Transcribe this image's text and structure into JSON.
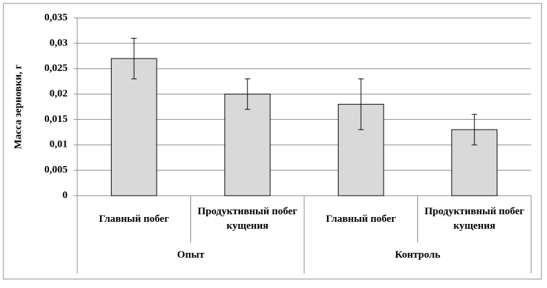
{
  "chart_data": {
    "type": "bar",
    "y_label": "Масса зерновки, г",
    "categories": [
      "Главный побег",
      "Продуктивный побег кущения",
      "Главный побег",
      "Продуктивный побег кущения"
    ],
    "groups": [
      "Опыт",
      "Контроль"
    ],
    "values": [
      0.027,
      0.02,
      0.018,
      0.013
    ],
    "errors": [
      0.004,
      0.003,
      0.005,
      0.003
    ],
    "color": "#d9d9d9",
    "ylim": [
      0,
      0.035
    ],
    "yticks": [
      0,
      {
        "value": 0.005,
        "label": "0,005"
      },
      {
        "value": 0.01,
        "label": "0,01"
      },
      {
        "value": 0.015,
        "label": "0,015"
      },
      {
        "value": 0.02,
        "label": "0,02"
      },
      {
        "value": 0.025,
        "label": "0,025"
      },
      {
        "value": 0.03,
        "label": "0,03"
      },
      {
        "value": 0.035,
        "label": "0,035"
      }
    ],
    "grid": true
  }
}
